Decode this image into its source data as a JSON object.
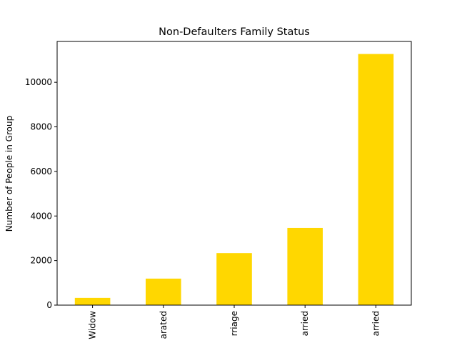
{
  "chart_data": {
    "type": "bar",
    "title": "Non-Defaulters Family Status",
    "xlabel": "",
    "ylabel": "Number of People in Group",
    "categories": [
      "Widow",
      "Separated",
      "Civil marriage",
      "Single / not married",
      "Married"
    ],
    "visible_tick_labels": [
      "Widow",
      "arated",
      "rriage",
      "arried",
      "arried"
    ],
    "values": [
      325,
      1190,
      2335,
      3465,
      11270
    ],
    "ylim": [
      0,
      11833
    ],
    "yticks": [
      0,
      2000,
      4000,
      6000,
      8000,
      10000
    ],
    "grid": false,
    "legend": "none",
    "bar_color": "#ffd700"
  }
}
